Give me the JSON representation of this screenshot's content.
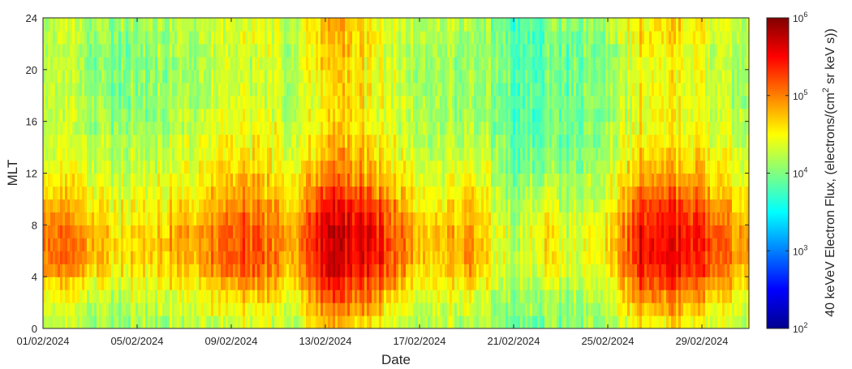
{
  "chart_data": {
    "type": "heatmap",
    "xlabel": "Date",
    "ylabel": "MLT",
    "colorbar_label_parts": [
      "40 keVeV Electron Flux, (electrons/(cm",
      "2",
      " sr keV s))"
    ],
    "x_ticks": [
      "01/02/2024",
      "05/02/2024",
      "09/02/2024",
      "13/02/2024",
      "17/02/2024",
      "21/02/2024",
      "25/02/2024",
      "29/02/2024"
    ],
    "x_range": [
      "01/02/2024",
      "02/03/2024"
    ],
    "y_ticks": [
      "0",
      "4",
      "8",
      "12",
      "16",
      "20",
      "24"
    ],
    "ylim": [
      0,
      24
    ],
    "colorbar_ticks": [
      {
        "base": "10",
        "exp": "2",
        "log": 2
      },
      {
        "base": "10",
        "exp": "3",
        "log": 3
      },
      {
        "base": "10",
        "exp": "4",
        "log": 4
      },
      {
        "base": "10",
        "exp": "5",
        "log": 5
      },
      {
        "base": "10",
        "exp": "6",
        "log": 6
      }
    ],
    "clim_log10": [
      2,
      6
    ],
    "colormap": "jet",
    "resolution": {
      "days": 29,
      "mlt_bins": 24
    },
    "approx_log10_flux_by_day_and_mlt": {
      "mlt_bins": [
        "0-1",
        "1-2",
        "2-3",
        "3-4",
        "4-5",
        "5-6",
        "6-7",
        "7-8",
        "8-9",
        "9-10",
        "10-11",
        "11-12",
        "12-13",
        "13-14",
        "14-15",
        "15-16",
        "16-17",
        "17-18",
        "18-19",
        "19-20",
        "20-21",
        "21-22",
        "22-23",
        "23-24"
      ],
      "days": [
        "01/02",
        "02/02",
        "03/02",
        "04/02",
        "05/02",
        "06/02",
        "07/02",
        "08/02",
        "09/02",
        "10/02",
        "11/02",
        "12/02",
        "13/02",
        "14/02",
        "15/02",
        "16/02",
        "17/02",
        "18/02",
        "19/02",
        "20/02",
        "21/02",
        "22/02",
        "23/02",
        "24/02",
        "25/02",
        "26/02",
        "27/02",
        "28/02",
        "29/02"
      ],
      "values": [
        [
          4.2,
          4.3,
          4.4,
          4.6,
          4.9,
          5.0,
          5.0,
          5.0,
          4.9,
          4.8,
          4.6,
          4.5,
          4.4,
          4.3,
          4.3,
          4.2,
          4.2,
          4.2,
          4.2,
          4.2,
          4.2,
          4.2,
          4.2,
          4.2
        ],
        [
          4.2,
          4.3,
          4.4,
          4.5,
          4.8,
          4.9,
          4.9,
          4.9,
          4.8,
          4.7,
          4.6,
          4.5,
          4.4,
          4.3,
          4.3,
          4.2,
          4.2,
          4.2,
          4.1,
          4.1,
          4.1,
          4.1,
          4.2,
          4.2
        ],
        [
          4.1,
          4.2,
          4.3,
          4.4,
          4.6,
          4.7,
          4.7,
          4.7,
          4.6,
          4.5,
          4.4,
          4.3,
          4.3,
          4.2,
          4.2,
          4.1,
          4.1,
          4.1,
          4.0,
          4.0,
          4.0,
          4.0,
          4.1,
          4.1
        ],
        [
          4.1,
          4.2,
          4.3,
          4.4,
          4.5,
          4.6,
          4.6,
          4.6,
          4.5,
          4.5,
          4.4,
          4.3,
          4.3,
          4.2,
          4.2,
          4.1,
          4.1,
          4.0,
          4.0,
          4.0,
          4.0,
          4.0,
          4.0,
          4.1
        ],
        [
          4.2,
          4.3,
          4.4,
          4.5,
          4.6,
          4.7,
          4.7,
          4.7,
          4.6,
          4.5,
          4.5,
          4.4,
          4.3,
          4.3,
          4.2,
          4.2,
          4.1,
          4.1,
          4.1,
          4.1,
          4.1,
          4.1,
          4.1,
          4.2
        ],
        [
          4.2,
          4.3,
          4.4,
          4.5,
          4.7,
          4.8,
          4.8,
          4.8,
          4.7,
          4.6,
          4.5,
          4.4,
          4.4,
          4.3,
          4.3,
          4.2,
          4.2,
          4.2,
          4.2,
          4.1,
          4.1,
          4.2,
          4.2,
          4.2
        ],
        [
          4.3,
          4.4,
          4.5,
          4.6,
          4.8,
          4.9,
          4.9,
          4.9,
          4.8,
          4.7,
          4.6,
          4.5,
          4.5,
          4.4,
          4.4,
          4.3,
          4.3,
          4.2,
          4.2,
          4.2,
          4.2,
          4.2,
          4.3,
          4.3
        ],
        [
          4.3,
          4.5,
          4.6,
          4.8,
          5.0,
          5.1,
          5.1,
          5.1,
          5.0,
          4.9,
          4.8,
          4.7,
          4.6,
          4.5,
          4.5,
          4.4,
          4.4,
          4.3,
          4.3,
          4.3,
          4.3,
          4.3,
          4.3,
          4.3
        ],
        [
          4.4,
          4.5,
          4.7,
          4.9,
          5.1,
          5.2,
          5.2,
          5.2,
          5.1,
          5.0,
          4.9,
          4.8,
          4.7,
          4.6,
          4.5,
          4.5,
          4.4,
          4.4,
          4.3,
          4.3,
          4.3,
          4.3,
          4.4,
          4.4
        ],
        [
          4.3,
          4.4,
          4.6,
          4.7,
          4.9,
          5.0,
          5.0,
          5.0,
          4.9,
          4.8,
          4.7,
          4.6,
          4.5,
          4.5,
          4.4,
          4.4,
          4.3,
          4.3,
          4.3,
          4.3,
          4.3,
          4.3,
          4.3,
          4.3
        ],
        [
          4.2,
          4.3,
          4.4,
          4.6,
          4.7,
          4.8,
          4.8,
          4.8,
          4.7,
          4.6,
          4.5,
          4.5,
          4.4,
          4.3,
          4.3,
          4.2,
          4.2,
          4.2,
          4.2,
          4.2,
          4.2,
          4.2,
          4.2,
          4.2
        ],
        [
          4.8,
          5.0,
          5.2,
          5.4,
          5.6,
          5.7,
          5.7,
          5.7,
          5.6,
          5.5,
          5.3,
          5.1,
          4.9,
          4.8,
          4.7,
          4.6,
          4.6,
          4.6,
          4.6,
          4.6,
          4.7,
          4.7,
          4.8,
          4.8
        ],
        [
          4.7,
          4.9,
          5.1,
          5.3,
          5.5,
          5.6,
          5.6,
          5.6,
          5.5,
          5.4,
          5.2,
          5.0,
          4.9,
          4.8,
          4.7,
          4.6,
          4.6,
          4.6,
          4.6,
          4.6,
          4.6,
          4.7,
          4.7,
          4.7
        ],
        [
          4.6,
          4.8,
          5.0,
          5.2,
          5.4,
          5.5,
          5.5,
          5.5,
          5.4,
          5.3,
          5.1,
          4.9,
          4.8,
          4.7,
          4.6,
          4.5,
          4.5,
          4.5,
          4.5,
          4.5,
          4.5,
          4.5,
          4.6,
          4.6
        ],
        [
          4.3,
          4.4,
          4.6,
          4.8,
          5.0,
          5.1,
          5.1,
          5.1,
          5.0,
          4.9,
          4.7,
          4.6,
          4.5,
          4.4,
          4.4,
          4.3,
          4.3,
          4.3,
          4.3,
          4.3,
          4.3,
          4.3,
          4.3,
          4.3
        ],
        [
          4.2,
          4.3,
          4.4,
          4.5,
          4.6,
          4.7,
          4.7,
          4.7,
          4.6,
          4.5,
          4.5,
          4.4,
          4.3,
          4.3,
          4.2,
          4.2,
          4.2,
          4.2,
          4.1,
          4.1,
          4.1,
          4.1,
          4.2,
          4.2
        ],
        [
          4.2,
          4.3,
          4.4,
          4.5,
          4.6,
          4.7,
          4.7,
          4.7,
          4.6,
          4.5,
          4.4,
          4.3,
          4.3,
          4.2,
          4.2,
          4.1,
          4.1,
          4.1,
          4.1,
          4.1,
          4.1,
          4.1,
          4.1,
          4.2
        ],
        [
          4.3,
          4.4,
          4.5,
          4.7,
          4.9,
          5.0,
          5.0,
          5.0,
          4.9,
          4.8,
          4.7,
          4.6,
          4.5,
          4.4,
          4.3,
          4.3,
          4.2,
          4.2,
          4.2,
          4.2,
          4.2,
          4.2,
          4.2,
          4.3
        ],
        [
          4.1,
          4.1,
          4.2,
          4.3,
          4.4,
          4.4,
          4.4,
          4.4,
          4.4,
          4.3,
          4.3,
          4.2,
          4.2,
          4.1,
          4.1,
          4.0,
          4.0,
          4.0,
          4.0,
          4.0,
          4.0,
          4.0,
          4.0,
          4.0
        ],
        [
          3.9,
          4.0,
          4.0,
          4.1,
          4.1,
          4.2,
          4.2,
          4.2,
          4.1,
          4.1,
          4.0,
          4.0,
          3.9,
          3.9,
          3.8,
          3.8,
          3.8,
          3.8,
          3.8,
          3.8,
          3.8,
          3.8,
          3.8,
          3.8
        ],
        [
          4.0,
          4.1,
          4.2,
          4.3,
          4.5,
          4.6,
          4.6,
          4.6,
          4.5,
          4.4,
          4.3,
          4.2,
          4.1,
          4.0,
          4.0,
          3.9,
          3.9,
          3.9,
          3.9,
          3.9,
          3.9,
          3.9,
          3.9,
          4.0
        ],
        [
          4.0,
          4.0,
          4.1,
          4.2,
          4.3,
          4.3,
          4.3,
          4.3,
          4.3,
          4.2,
          4.1,
          4.1,
          4.0,
          4.0,
          3.9,
          3.9,
          3.9,
          3.9,
          3.9,
          3.9,
          3.9,
          3.9,
          3.9,
          4.0
        ],
        [
          4.1,
          4.1,
          4.2,
          4.3,
          4.4,
          4.4,
          4.4,
          4.4,
          4.4,
          4.3,
          4.2,
          4.2,
          4.1,
          4.1,
          4.0,
          4.0,
          4.0,
          4.0,
          4.0,
          4.0,
          4.0,
          4.0,
          4.0,
          4.1
        ],
        [
          4.2,
          4.3,
          4.4,
          4.5,
          4.6,
          4.7,
          4.7,
          4.7,
          4.6,
          4.5,
          4.4,
          4.4,
          4.3,
          4.2,
          4.2,
          4.2,
          4.1,
          4.1,
          4.1,
          4.1,
          4.1,
          4.1,
          4.2,
          4.2
        ],
        [
          4.6,
          4.8,
          5.0,
          5.2,
          5.4,
          5.5,
          5.5,
          5.5,
          5.4,
          5.3,
          5.1,
          4.9,
          4.8,
          4.7,
          4.6,
          4.5,
          4.5,
          4.5,
          4.5,
          4.5,
          4.5,
          4.5,
          4.6,
          4.6
        ],
        [
          4.6,
          4.8,
          5.0,
          5.2,
          5.4,
          5.5,
          5.5,
          5.5,
          5.4,
          5.3,
          5.1,
          4.9,
          4.8,
          4.7,
          4.6,
          4.5,
          4.5,
          4.5,
          4.5,
          4.5,
          4.5,
          4.5,
          4.6,
          4.6
        ],
        [
          4.6,
          4.8,
          5.0,
          5.2,
          5.4,
          5.5,
          5.5,
          5.5,
          5.4,
          5.3,
          5.1,
          4.9,
          4.8,
          4.7,
          4.6,
          4.5,
          4.5,
          4.5,
          4.5,
          4.5,
          4.5,
          4.5,
          4.6,
          4.6
        ],
        [
          4.4,
          4.5,
          4.7,
          4.9,
          5.1,
          5.2,
          5.2,
          5.2,
          5.1,
          5.0,
          4.8,
          4.7,
          4.6,
          4.5,
          4.4,
          4.4,
          4.3,
          4.3,
          4.3,
          4.3,
          4.3,
          4.3,
          4.4,
          4.4
        ],
        [
          4.3,
          4.4,
          4.5,
          4.7,
          4.8,
          4.9,
          4.9,
          4.9,
          4.8,
          4.7,
          4.6,
          4.5,
          4.4,
          4.4,
          4.3,
          4.3,
          4.3,
          4.2,
          4.2,
          4.2,
          4.2,
          4.2,
          4.3,
          4.3
        ]
      ]
    }
  }
}
